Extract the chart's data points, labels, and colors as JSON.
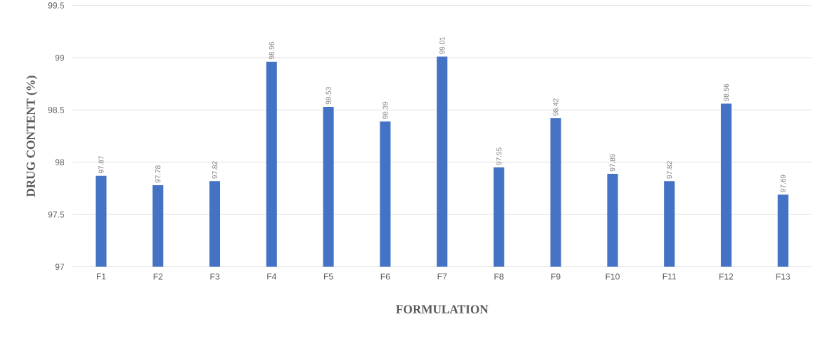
{
  "chart_data": {
    "type": "bar",
    "xlabel": "FORMULATION",
    "ylabel": "DRUG CONTENT (%)",
    "categories": [
      "F1",
      "F2",
      "F3",
      "F4",
      "F5",
      "F6",
      "F7",
      "F8",
      "F9",
      "F10",
      "F11",
      "F12",
      "F13"
    ],
    "values": [
      97.87,
      97.78,
      97.82,
      98.96,
      98.53,
      98.39,
      99.01,
      97.95,
      98.42,
      97.89,
      97.82,
      98.56,
      97.69
    ],
    "color": "#4472c4",
    "ylim": [
      97,
      99.5
    ],
    "yticks": [
      97,
      97.5,
      98,
      98.5,
      99,
      99.5
    ],
    "grid": "y",
    "data_labels": true
  }
}
